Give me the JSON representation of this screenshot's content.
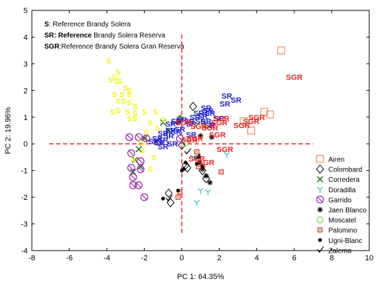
{
  "chart_data": {
    "type": "scatter",
    "xlabel": "PC 1: 64.35%",
    "ylabel": "PC 2: 19.96%",
    "xlim": [
      -8,
      10
    ],
    "ylim": [
      -4,
      5
    ],
    "xticks": [
      -8,
      -6,
      -4,
      -2,
      0,
      2,
      4,
      6,
      8,
      10
    ],
    "yticks": [
      -4,
      -3,
      -2,
      -1,
      0,
      1,
      2,
      3,
      4,
      5
    ],
    "grid": false,
    "reference_lines": {
      "x": 0,
      "y": 0,
      "color": "#e8221c",
      "style": "dashed"
    },
    "annotation_legend": [
      {
        "prefix": "S",
        "text": ": Reference Brandy Solera",
        "color": "#f2f21e"
      },
      {
        "prefix": "SR: Reference",
        "text": " Brandy Solera Reserva",
        "color": "#1f22d6"
      },
      {
        "prefix": "SGR",
        "text": ":Reference Brandy Solera Gran Reserva",
        "color": "#e8221c"
      }
    ],
    "annotations": {
      "S": {
        "label": "S",
        "color": "#f2f21e",
        "points": [
          [
            -3.9,
            3.1
          ],
          [
            -3.8,
            2.4
          ],
          [
            -3.4,
            2.7
          ],
          [
            -3.6,
            2.5
          ],
          [
            -3.5,
            2.35
          ],
          [
            -3.3,
            2.35
          ],
          [
            -3.0,
            2.1
          ],
          [
            -2.8,
            2.0
          ],
          [
            -3.6,
            1.85
          ],
          [
            -3.2,
            1.85
          ],
          [
            -2.8,
            1.85
          ],
          [
            -3.4,
            1.6
          ],
          [
            -3.1,
            1.6
          ],
          [
            -2.8,
            1.55
          ],
          [
            -2.5,
            1.4
          ],
          [
            -3.7,
            1.2
          ],
          [
            -3.4,
            1.25
          ],
          [
            -2.9,
            1.2
          ],
          [
            -2.5,
            1.15
          ],
          [
            -2.0,
            1.2
          ],
          [
            -1.4,
            1.2
          ],
          [
            -2.8,
            0.95
          ],
          [
            -2.5,
            0.95
          ],
          [
            -1.7,
            0.8
          ],
          [
            -1.0,
            0.9
          ],
          [
            -1.3,
            0.6
          ],
          [
            -1.9,
            0.45
          ],
          [
            -2.2,
            0.05
          ],
          [
            -2.1,
            -0.25
          ],
          [
            -1.5,
            -0.5
          ],
          [
            -2.6,
            -0.55
          ],
          [
            -1.7,
            -0.95
          ]
        ]
      },
      "SR": {
        "label": "SR",
        "color": "#1f22d6",
        "points": [
          [
            2.4,
            1.8
          ],
          [
            2.9,
            1.65
          ],
          [
            2.3,
            1.5
          ],
          [
            1.3,
            1.35
          ],
          [
            1.4,
            1.25
          ],
          [
            0.9,
            1.15
          ],
          [
            1.5,
            1.15
          ],
          [
            1.1,
            1.05
          ],
          [
            0.7,
            1.0
          ],
          [
            2.0,
            0.95
          ],
          [
            1.3,
            0.85
          ],
          [
            0.0,
            0.9
          ],
          [
            0.4,
            0.85
          ],
          [
            1.0,
            0.85
          ],
          [
            -0.3,
            0.85
          ],
          [
            0.5,
            0.75
          ],
          [
            -0.6,
            0.75
          ],
          [
            1.5,
            0.7
          ],
          [
            -0.1,
            0.55
          ],
          [
            -0.6,
            0.5
          ],
          [
            -0.3,
            0.45
          ],
          [
            -1.0,
            0.4
          ],
          [
            -0.7,
            0.3
          ],
          [
            -1.3,
            0.2
          ],
          [
            -1.0,
            0.15
          ],
          [
            -1.5,
            0.1
          ],
          [
            -1.2,
            0.05
          ],
          [
            -1.0,
            -0.1
          ],
          [
            0.5,
            0.35
          ],
          [
            -0.5,
            0.0
          ]
        ]
      },
      "SGR": {
        "label": "SGR",
        "color": "#e8221c",
        "points": [
          [
            6.0,
            2.5
          ],
          [
            4.0,
            1.0
          ],
          [
            3.7,
            0.85
          ],
          [
            2.1,
            0.95
          ],
          [
            3.2,
            0.7
          ],
          [
            2.0,
            0.8
          ],
          [
            1.5,
            0.6
          ],
          [
            0.1,
            0.8
          ],
          [
            0.9,
            0.65
          ],
          [
            1.9,
            0.35
          ],
          [
            0.7,
            0.2
          ],
          [
            0.4,
            0.15
          ],
          [
            2.3,
            -0.2
          ],
          [
            1.3,
            -0.7
          ],
          [
            0.8,
            -0.55
          ]
        ]
      }
    },
    "series": [
      {
        "name": "Airen",
        "marker": "square",
        "color": "#ef8a5a",
        "fill": "none",
        "points": [
          [
            5.3,
            3.5
          ],
          [
            4.7,
            1.1
          ],
          [
            4.4,
            1.2
          ],
          [
            3.7,
            0.5
          ],
          [
            3.3,
            0.85
          ]
        ]
      },
      {
        "name": "Colombard",
        "marker": "diamond",
        "color": "#000000",
        "fill": "none",
        "points": [
          [
            0.6,
            1.4
          ],
          [
            -0.1,
            0.9
          ],
          [
            -0.7,
            -1.85
          ],
          [
            -0.6,
            -2.2
          ],
          [
            0.2,
            -0.8
          ],
          [
            0.3,
            -0.9
          ],
          [
            1.3,
            -1.3
          ],
          [
            1.1,
            -1.0
          ],
          [
            0.0,
            -0.05
          ]
        ]
      },
      {
        "name": "Corredera",
        "marker": "x",
        "color": "#1a7a1a",
        "fill": "none",
        "points": [
          [
            -2.2,
            -0.85
          ],
          [
            -2.5,
            -0.6
          ],
          [
            -2.6,
            -1.05
          ],
          [
            -2.3,
            -0.2
          ],
          [
            -2.0,
            0.2
          ],
          [
            -1.0,
            0.8
          ],
          [
            -0.7,
            0.5
          ]
        ]
      },
      {
        "name": "Doradilla",
        "marker": "triangle",
        "color": "#3cc8c8",
        "fill": "none",
        "points": [
          [
            0.8,
            -2.2
          ],
          [
            1.0,
            -1.75
          ],
          [
            2.4,
            -0.4
          ],
          [
            1.4,
            -1.8
          ],
          [
            0.6,
            -0.5
          ]
        ]
      },
      {
        "name": "Garrido",
        "marker": "circle-slash",
        "color": "#a02ab0",
        "fill": "none",
        "points": [
          [
            -2.3,
            0.25
          ],
          [
            -1.9,
            0.2
          ],
          [
            -2.8,
            0.25
          ],
          [
            -2.7,
            -0.35
          ],
          [
            -2.7,
            -0.9
          ],
          [
            -2.2,
            -0.65
          ],
          [
            -2.2,
            -0.95
          ],
          [
            -2.6,
            -1.25
          ],
          [
            -2.6,
            -1.55
          ],
          [
            -2.3,
            -1.55
          ],
          [
            -2.0,
            -2.0
          ],
          [
            -0.1,
            0.2
          ]
        ]
      },
      {
        "name": "Jaen Blanco",
        "marker": "asterisk",
        "color": "#000000",
        "fill": "none",
        "points": [
          [
            1.0,
            0.3
          ],
          [
            1.6,
            0.25
          ],
          [
            0.9,
            -0.5
          ],
          [
            0.95,
            -0.7
          ],
          [
            1.1,
            -0.85
          ],
          [
            1.1,
            -0.95
          ],
          [
            1.5,
            -1.45
          ],
          [
            1.3,
            -1.2
          ]
        ]
      },
      {
        "name": "Moscatel",
        "marker": "circle",
        "color": "#6fd64e",
        "fill": "none",
        "points": [
          [
            -0.1,
            0.95
          ],
          [
            0.2,
            0.05
          ]
        ]
      },
      {
        "name": "Palomino",
        "marker": "square-dot",
        "color": "#d83a1e",
        "fill": "none",
        "points": [
          [
            -0.1,
            -1.8
          ],
          [
            -0.2,
            -2.0
          ],
          [
            1.6,
            0.7
          ],
          [
            0.9,
            -0.85
          ],
          [
            2.1,
            -1.05
          ],
          [
            0.8,
            -0.3
          ]
        ]
      },
      {
        "name": "Ugni-Blanc",
        "marker": "dot",
        "color": "#000000",
        "fill": "#000000",
        "points": [
          [
            -1.0,
            -2.05
          ],
          [
            -0.2,
            -1.75
          ],
          [
            0.0,
            -1.0
          ],
          [
            0.2,
            -0.7
          ],
          [
            0.8,
            -0.75
          ],
          [
            0.1,
            -0.95
          ]
        ]
      },
      {
        "name": "Zalema",
        "marker": "check",
        "color": "#000000",
        "fill": "none",
        "points": [
          [
            -0.2,
            0.8
          ],
          [
            0.3,
            -0.3
          ],
          [
            0.8,
            -0.5
          ],
          [
            -0.7,
            -2.05
          ]
        ]
      }
    ]
  }
}
